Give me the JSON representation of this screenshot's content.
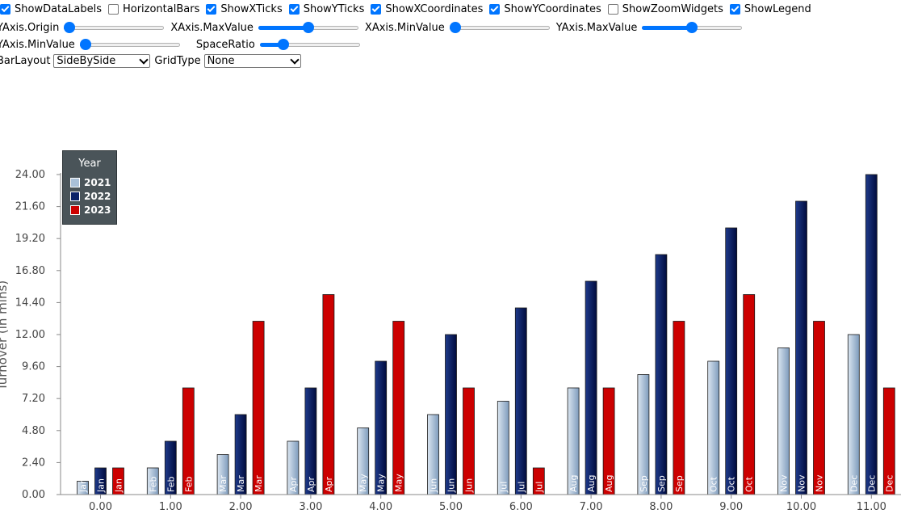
{
  "controls": {
    "checkboxes": [
      {
        "label": "ShowDataLabels",
        "checked": true
      },
      {
        "label": "HorizontalBars",
        "checked": false
      },
      {
        "label": "ShowXTicks",
        "checked": true
      },
      {
        "label": "ShowYTicks",
        "checked": true
      },
      {
        "label": "ShowXCoordinates",
        "checked": true
      },
      {
        "label": "ShowYCoordinates",
        "checked": true
      },
      {
        "label": "ShowZoomWidgets",
        "checked": false
      },
      {
        "label": "ShowLegend",
        "checked": true
      }
    ],
    "sliders": [
      {
        "label": "YAxis.Origin",
        "value": 0.0
      },
      {
        "label": "XAxis.MaxValue",
        "value": 0.5
      },
      {
        "label": "XAxis.MinValue",
        "value": 0.0
      },
      {
        "label": "YAxis.MaxValue",
        "value": 0.5
      },
      {
        "label": "YAxis.MinValue",
        "value": 0.0
      },
      {
        "label": "SpaceRatio",
        "value": 0.2
      }
    ],
    "selects": [
      {
        "label": "BarLayout",
        "value": "SideBySide"
      },
      {
        "label": "GridType",
        "value": "None"
      }
    ]
  },
  "legend": {
    "title": "Year",
    "items": [
      {
        "label": "2021",
        "color": "#a9c0d8"
      },
      {
        "label": "2022",
        "color": "#0a2167"
      },
      {
        "label": "2023",
        "color": "#cc0000"
      }
    ]
  },
  "colors": {
    "s2021_light": "#dbe6f1",
    "s2021_dark": "#7e9bbc",
    "s2022_light": "#1e3a8a",
    "s2022_dark": "#000b3d",
    "s2023": "#cc0000",
    "axis": "#888888",
    "tick_text": "#444444"
  },
  "chart_data": {
    "type": "bar",
    "layout": "SideBySide",
    "x": [
      0,
      1,
      2,
      3,
      4,
      5,
      6,
      7,
      8,
      9,
      10,
      11
    ],
    "x_tick_labels": [
      "0.00",
      "1.00",
      "2.00",
      "3.00",
      "4.00",
      "5.00",
      "6.00",
      "7.00",
      "8.00",
      "9.00",
      "10.00",
      "11.00"
    ],
    "y_tick_labels": [
      "0.00",
      "2.40",
      "4.80",
      "7.20",
      "9.60",
      "12.00",
      "14.40",
      "16.80",
      "19.20",
      "21.60",
      "24.00"
    ],
    "ylim": [
      0,
      24
    ],
    "ylabel": "Turnover (in mlns)",
    "xlabel": "",
    "grid": false,
    "legend_position": "top-left",
    "series": [
      {
        "name": "2021",
        "values": [
          1,
          2,
          3,
          4,
          5,
          6,
          7,
          8,
          9,
          10,
          11,
          12
        ],
        "labels": [
          "Jan",
          "Feb",
          "Mar",
          "Apr",
          "May",
          "Jun",
          "Jul",
          "Aug",
          "Sep",
          "Oct",
          "Nov",
          "Dec"
        ]
      },
      {
        "name": "2022",
        "values": [
          2,
          4,
          6,
          8,
          10,
          12,
          14,
          16,
          18,
          20,
          22,
          24
        ],
        "labels": [
          "Jan",
          "Feb",
          "Mar",
          "Apr",
          "May",
          "Jun",
          "Jul",
          "Aug",
          "Sep",
          "Oct",
          "Nov",
          "Dec"
        ]
      },
      {
        "name": "2023",
        "values": [
          2,
          8,
          13,
          15,
          13,
          8,
          2,
          8,
          13,
          15,
          13,
          8
        ],
        "labels": [
          "Jan",
          "Feb",
          "Mar",
          "Apr",
          "May",
          "Jun",
          "Jul",
          "Aug",
          "Sep",
          "Oct",
          "Nov",
          "Dec"
        ]
      }
    ]
  }
}
